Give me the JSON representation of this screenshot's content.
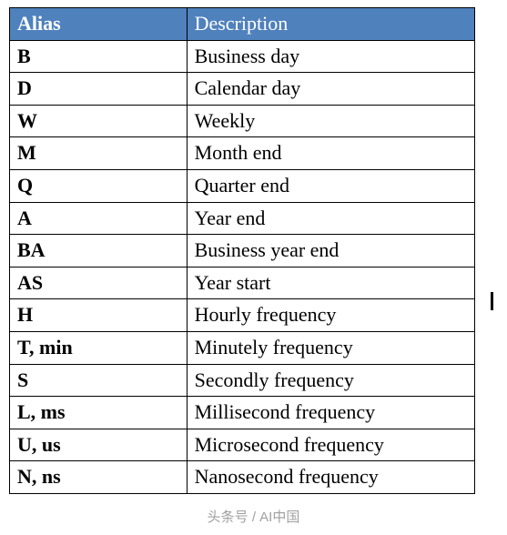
{
  "table": {
    "header_bg": "#4f81bd",
    "header_color": "#ffffff",
    "border_color": "#000000",
    "columns": [
      "Alias",
      "Description"
    ],
    "rows": [
      {
        "alias": "B",
        "description": "Business day"
      },
      {
        "alias": "D",
        "description": "Calendar day"
      },
      {
        "alias": "W",
        "description": "Weekly"
      },
      {
        "alias": "M",
        "description": "Month end"
      },
      {
        "alias": "Q",
        "description": "Quarter end"
      },
      {
        "alias": "A",
        "description": "Year end"
      },
      {
        "alias": "BA",
        "description": "Business year end"
      },
      {
        "alias": "AS",
        "description": "Year start"
      },
      {
        "alias": "H",
        "description": "Hourly frequency"
      },
      {
        "alias": "T, min",
        "description": "Minutely frequency"
      },
      {
        "alias": "S",
        "description": "Secondly frequency"
      },
      {
        "alias": "L, ms",
        "description": "Millisecond frequency"
      },
      {
        "alias": "U, us",
        "description": "Microsecond frequency"
      },
      {
        "alias": "N, ns",
        "description": "Nanosecond frequency"
      }
    ]
  },
  "footer": {
    "text": "头条号 / AI中国"
  }
}
